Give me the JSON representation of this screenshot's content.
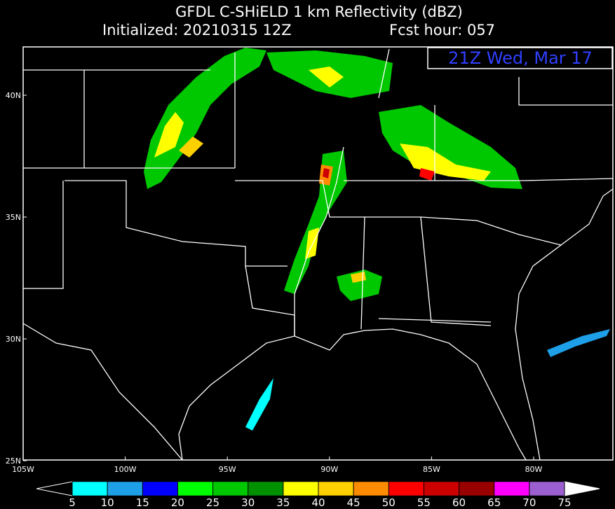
{
  "header": {
    "title": "GFDL C-SHiELD 1 km Reflectivity (dBZ)",
    "initialized": "Initialized: 20210315 12Z",
    "forecast_hour": "Fcst hour:  057"
  },
  "valid_time": "21Z Wed, Mar 17",
  "map": {
    "lat_labels": [
      "40N",
      "35N",
      "30N",
      "25N"
    ],
    "lon_labels": [
      "105W",
      "100W",
      "95W",
      "90W",
      "85W",
      "80W"
    ]
  },
  "colorbar": {
    "ticks": [
      5,
      10,
      15,
      20,
      25,
      30,
      35,
      40,
      45,
      50,
      55,
      60,
      65,
      70,
      75
    ],
    "colors": [
      "#00ffff",
      "#1ea0e8",
      "#0000ff",
      "#00ff00",
      "#00c800",
      "#009000",
      "#ffff00",
      "#ffd000",
      "#ff8c00",
      "#ff0000",
      "#cc0000",
      "#990000",
      "#ff00ff",
      "#9b5fd0"
    ]
  }
}
